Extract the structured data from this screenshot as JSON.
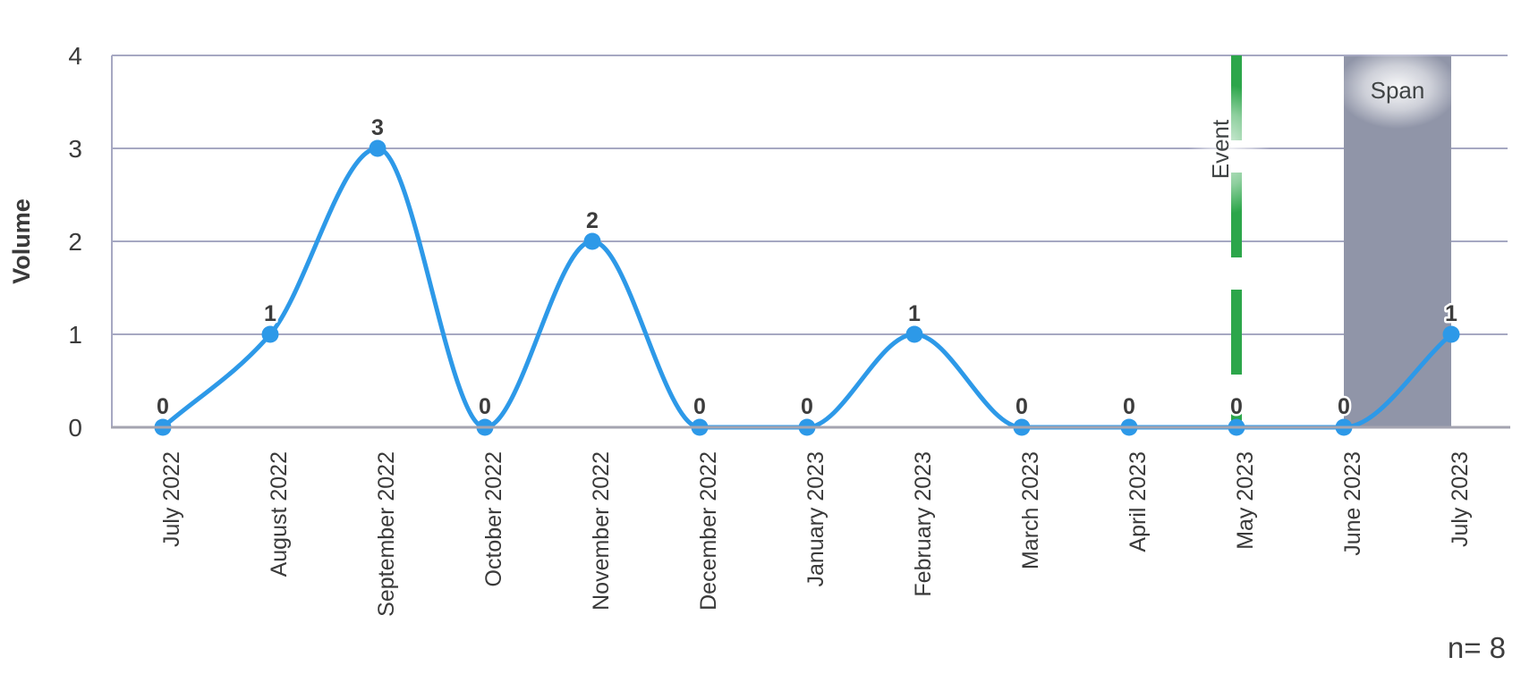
{
  "chart_data": {
    "type": "line",
    "title": "",
    "xlabel": "",
    "ylabel": "Volume",
    "ylim": [
      0,
      4
    ],
    "yticks": [
      0,
      1,
      2,
      3,
      4
    ],
    "grid": true,
    "categories": [
      "July 2022",
      "August 2022",
      "September 2022",
      "October 2022",
      "November 2022",
      "December 2022",
      "January 2023",
      "February 2023",
      "March 2023",
      "April 2023",
      "May 2023",
      "June 2023",
      "July 2023"
    ],
    "series": [
      {
        "name": "Volume",
        "values": [
          0,
          1,
          3,
          0,
          2,
          0,
          0,
          1,
          0,
          0,
          0,
          0,
          1
        ]
      }
    ],
    "point_labels": [
      "0",
      "1",
      "3",
      "0",
      "2",
      "0",
      "0",
      "1",
      "0",
      "0",
      "0",
      "0",
      "1"
    ],
    "annotations": {
      "event": {
        "label": "Event",
        "category": "May 2023",
        "style": "vertical-dashed-line",
        "color": "#2CA64A"
      },
      "span": {
        "label": "Span",
        "from": "June 2023",
        "to": "July 2023",
        "color": "#9095A8"
      },
      "sample_size": "n= 8"
    },
    "colors": {
      "line": "#2D99E8",
      "marker": "#2D99E8",
      "grid": "#A6A8C2",
      "axis": "#A4A4B0",
      "text": "#3c3c3c",
      "event_green": "#2CA64A",
      "span_gray": "#9095A8"
    },
    "legend": null
  }
}
